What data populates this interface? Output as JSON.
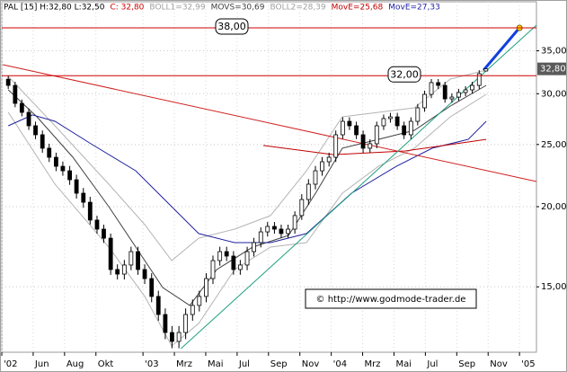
{
  "chart_data": {
    "type": "candlestick",
    "legend": [
      {
        "text": "PAL [15] H:32,80 L:32,50",
        "color": "#000000"
      },
      {
        "text": "C: 32,80",
        "color": "#d00000"
      },
      {
        "text": "BOLL1=32,99",
        "color": "#a0a0a0"
      },
      {
        "text": "MOVS=30,69",
        "color": "#404040"
      },
      {
        "text": "BOLL2=28,39",
        "color": "#a0a0a0"
      },
      {
        "text": "MovE=25,68",
        "color": "#c00000"
      },
      {
        "text": "MovE=27,33",
        "color": "#2020a0"
      }
    ],
    "ylog": true,
    "grid": true,
    "xlim": [
      3,
      37.08
    ],
    "ylim": [
      11.86,
      41.73
    ],
    "xticks": [
      {
        "value": 3,
        "label": "'02"
      },
      {
        "value": 5,
        "label": "Jun"
      },
      {
        "value": 7,
        "label": "Aug"
      },
      {
        "value": 9,
        "label": "Okt"
      },
      {
        "value": 12,
        "label": "'03"
      },
      {
        "value": 14,
        "label": "Mrz"
      },
      {
        "value": 16,
        "label": "Mai"
      },
      {
        "value": 18,
        "label": "Jul"
      },
      {
        "value": 20,
        "label": "Sep"
      },
      {
        "value": 22,
        "label": "Nov"
      },
      {
        "value": 24,
        "label": "'04"
      },
      {
        "value": 26,
        "label": "Mrz"
      },
      {
        "value": 28,
        "label": "Mai"
      },
      {
        "value": 30,
        "label": "Jul"
      },
      {
        "value": 32,
        "label": "Sep"
      },
      {
        "value": 34,
        "label": "Nov"
      },
      {
        "value": 36,
        "label": "'05"
      }
    ],
    "yticks": [
      {
        "value": 15,
        "label": "15,00"
      },
      {
        "value": 20,
        "label": "20,00"
      },
      {
        "value": 25,
        "label": "25,00"
      },
      {
        "value": 30,
        "label": "30,00"
      },
      {
        "value": 35,
        "label": "35,00"
      }
    ],
    "last_price": {
      "value": 32.8,
      "label": "32,80"
    },
    "up_color": "#ffffff",
    "down_color": "#000000",
    "x": [
      3.41,
      3.85,
      4.28,
      4.72,
      5.15,
      5.59,
      6.02,
      6.46,
      6.89,
      7.33,
      7.76,
      8.2,
      8.63,
      9.07,
      9.5,
      9.94,
      10.37,
      10.81,
      11.24,
      11.68,
      12.11,
      12.55,
      12.98,
      13.42,
      13.85,
      14.29,
      14.72,
      15.16,
      15.59,
      16.03,
      16.46,
      16.9,
      17.33,
      17.77,
      18.2,
      18.64,
      19.07,
      19.51,
      19.94,
      20.38,
      20.81,
      21.25,
      21.68,
      22.12,
      22.55,
      22.99,
      23.42,
      23.86,
      24.29,
      24.73,
      25.16,
      25.6,
      26.03,
      26.47,
      26.9,
      27.34,
      27.77,
      28.21,
      28.64,
      29.08,
      29.51,
      29.95,
      30.38,
      30.82,
      31.25,
      31.69,
      32.12,
      32.56,
      32.99,
      33.43,
      33.86
    ],
    "open": [
      31.6,
      30.91,
      28.98,
      28.06,
      26.74,
      25.89,
      24.67,
      23.88,
      23.12,
      22.75,
      22.03,
      20.99,
      20.32,
      19.06,
      18.45,
      17.86,
      15.96,
      15.7,
      16.22,
      17.02,
      15.96,
      15.45,
      14.49,
      13.58,
      12.73,
      12.33,
      12.73,
      13.58,
      14.03,
      14.49,
      15.45,
      16.48,
      17.02,
      16.75,
      15.96,
      16.22,
      17.02,
      17.58,
      18.27,
      18.63,
      18.45,
      18.16,
      18.45,
      19.37,
      20.52,
      21.68,
      22.75,
      23.5,
      23.88,
      25.89,
      27.17,
      26.74,
      25.89,
      24.67,
      25.07,
      26.74,
      27.44,
      27.61,
      26.74,
      25.89,
      27.17,
      28.52,
      29.93,
      31.22,
      30.91,
      29.45,
      29.64,
      30.13,
      30.42,
      30.91,
      32.55
    ],
    "high": [
      32.0,
      31.31,
      29.38,
      28.46,
      27.14,
      26.29,
      25.07,
      24.28,
      23.52,
      23.15,
      22.43,
      21.39,
      20.72,
      19.36,
      18.75,
      18.16,
      16.26,
      16.52,
      17.32,
      17.32,
      16.26,
      15.75,
      14.79,
      13.88,
      13.03,
      13.03,
      13.88,
      14.33,
      14.79,
      15.75,
      16.78,
      17.32,
      17.32,
      17.05,
      16.52,
      17.32,
      17.88,
      18.57,
      18.93,
      18.93,
      18.75,
      18.75,
      19.67,
      20.92,
      22.08,
      23.15,
      23.9,
      24.28,
      26.29,
      27.57,
      27.57,
      27.14,
      26.29,
      25.47,
      27.14,
      27.84,
      28.01,
      28.01,
      27.14,
      27.57,
      28.92,
      30.33,
      31.62,
      31.62,
      31.31,
      30.04,
      30.53,
      30.82,
      31.31,
      32.64,
      32.8
    ],
    "low": [
      30.51,
      28.58,
      27.66,
      26.34,
      25.49,
      24.27,
      23.48,
      22.72,
      22.35,
      21.63,
      20.59,
      19.92,
      18.76,
      18.15,
      17.56,
      15.66,
      15.4,
      15.4,
      15.92,
      15.66,
      15.15,
      14.19,
      13.28,
      12.43,
      12.03,
      12.03,
      12.43,
      13.28,
      13.73,
      14.19,
      15.15,
      16.18,
      16.45,
      15.66,
      15.66,
      15.92,
      16.72,
      17.28,
      17.97,
      18.15,
      17.86,
      17.86,
      18.15,
      19.07,
      20.12,
      21.28,
      22.35,
      23.1,
      23.48,
      25.49,
      26.34,
      25.49,
      24.27,
      24.27,
      24.67,
      26.34,
      27.04,
      26.34,
      25.49,
      25.49,
      26.77,
      28.12,
      29.53,
      30.51,
      29.05,
      29.05,
      29.24,
      29.73,
      30.02,
      30.51,
      32.5
    ],
    "close": [
      30.91,
      28.98,
      28.06,
      26.74,
      25.89,
      24.67,
      23.88,
      23.12,
      22.75,
      22.03,
      20.99,
      20.32,
      19.06,
      18.45,
      17.86,
      15.96,
      15.7,
      16.22,
      17.02,
      15.96,
      15.45,
      14.49,
      13.58,
      12.73,
      12.33,
      12.73,
      13.58,
      14.03,
      14.49,
      15.45,
      16.48,
      17.02,
      16.75,
      15.96,
      16.22,
      17.02,
      17.58,
      18.27,
      18.63,
      18.45,
      18.16,
      18.45,
      19.37,
      20.52,
      21.68,
      22.75,
      23.5,
      23.88,
      25.89,
      27.17,
      26.74,
      25.89,
      24.67,
      25.07,
      26.74,
      27.44,
      27.61,
      26.74,
      25.89,
      27.17,
      28.52,
      29.93,
      31.22,
      30.91,
      29.45,
      29.64,
      30.13,
      30.42,
      30.91,
      32.24,
      32.8
    ],
    "overlays": [
      {
        "color": "#b4b4b4",
        "width": 1,
        "x": [
          3.41,
          6.39,
          9.82,
          12.11,
          13.83,
          15.55,
          17.84,
          20.13,
          22.42,
          24.71,
          27.01,
          29.3,
          31.59,
          33.88
        ],
        "values": [
          31.93,
          26.74,
          21.68,
          18.75,
          16.48,
          17.86,
          18.45,
          19.37,
          22.75,
          27.61,
          28.06,
          28.52,
          31.62,
          32.66
        ]
      },
      {
        "color": "#b4b4b4",
        "width": 1,
        "x": [
          3.41,
          6.39,
          9.82,
          12.11,
          13.83,
          15.55,
          17.84,
          20.13,
          22.42,
          24.71,
          27.01,
          29.3,
          31.59,
          33.88
        ],
        "values": [
          28.06,
          21.68,
          17.3,
          14.49,
          12.13,
          13.15,
          15.96,
          17.3,
          17.58,
          20.99,
          23.12,
          24.67,
          27.61,
          29.93
        ]
      },
      {
        "color": "#404040",
        "width": 1,
        "x": [
          3.41,
          5.24,
          7.53,
          9.82,
          11.54,
          13.26,
          14.98,
          16.7,
          18.99,
          21.28,
          23.0,
          24.71,
          27.01,
          29.3,
          31.59,
          33.88
        ],
        "values": [
          30.42,
          27.61,
          23.88,
          20.0,
          17.3,
          14.96,
          14.03,
          15.96,
          17.3,
          18.04,
          20.99,
          24.67,
          25.47,
          26.31,
          28.7,
          30.91
        ]
      },
      {
        "color": "#2020a0",
        "width": 1,
        "x": [
          3.41,
          4.96,
          6.39,
          8.68,
          11.54,
          13.83,
          15.55,
          17.84,
          20.13,
          22.42,
          25.29,
          28.15,
          30.44,
          32.73,
          33.88
        ],
        "values": [
          26.74,
          27.8,
          27.17,
          25.07,
          22.75,
          20.0,
          18.16,
          17.58,
          17.58,
          18.16,
          20.99,
          23.12,
          24.67,
          25.47,
          27.17
        ]
      },
      {
        "color": "#c00000",
        "width": 1,
        "x": [
          19.67,
          24.14,
          28.72,
          33.88
        ],
        "values": [
          24.91,
          24.11,
          24.43,
          25.47
        ]
      },
      {
        "color": "#d02020",
        "width": 1,
        "x": [
          3.07,
          37.08
        ],
        "values": [
          33.3,
          21.89
        ]
      },
      {
        "color": "#20a080",
        "width": 1,
        "x": [
          14.41,
          37.08
        ],
        "values": [
          12.01,
          38.37
        ]
      },
      {
        "color": "#1040e0",
        "width": 3,
        "x": [
          33.71,
          36.0
        ],
        "values": [
          32.66,
          38.0
        ]
      }
    ],
    "levels": [
      {
        "value": 38,
        "label": "38,00",
        "color": "#d00000"
      },
      {
        "value": 32,
        "label": "32,00",
        "color": "#d00000"
      }
    ],
    "copyright": "© http://www.godmode-trader.de"
  }
}
